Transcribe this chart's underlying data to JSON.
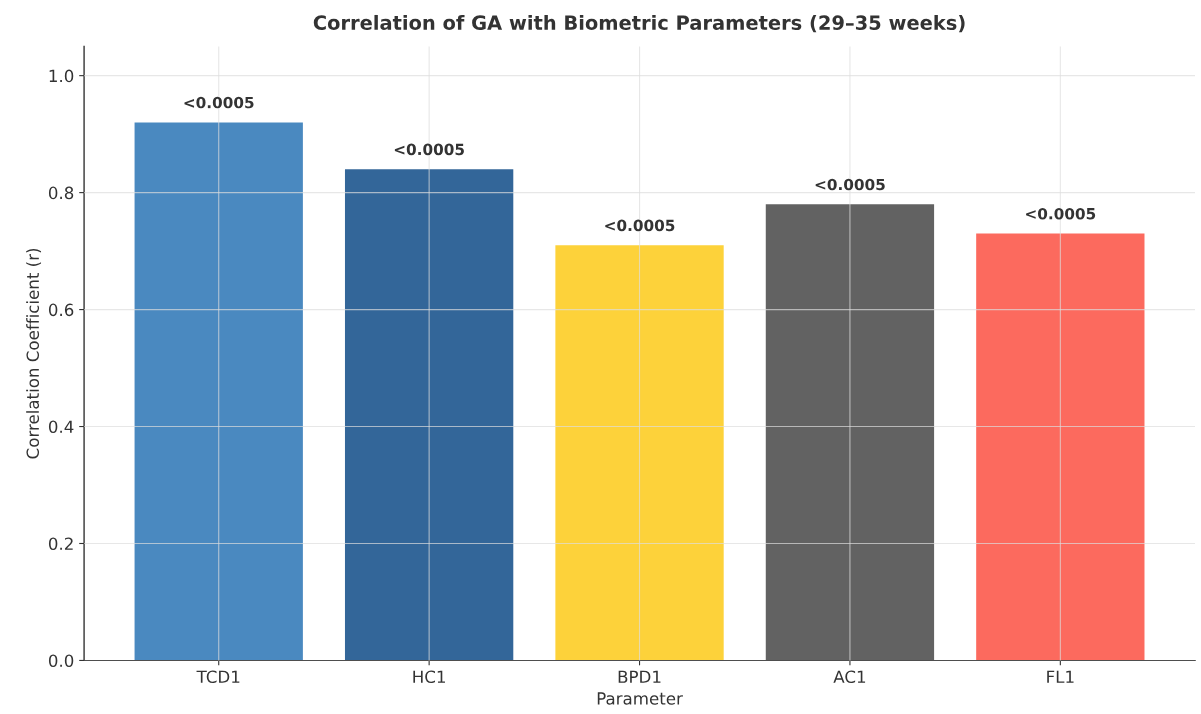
{
  "chart_data": {
    "type": "bar",
    "title": "Correlation of GA with Biometric Parameters (29–35 weeks)",
    "xlabel": "Parameter",
    "ylabel": "Correlation Coefficient (r)",
    "categories": [
      "TCD1",
      "HC1",
      "BPD1",
      "AC1",
      "FL1"
    ],
    "values": [
      0.92,
      0.84,
      0.71,
      0.78,
      0.73
    ],
    "colors": [
      "#4a89c0",
      "#336699",
      "#fdd23a",
      "#626262",
      "#fc6a5e"
    ],
    "value_labels": [
      "<0.0005",
      "<0.0005",
      "<0.0005",
      "<0.0005",
      "<0.0005"
    ],
    "ylim": [
      0,
      1.05
    ],
    "yticks": [
      {
        "value": 0,
        "label": "0.0"
      },
      0.2,
      0.4,
      0.6,
      0.8,
      {
        "value": 1,
        "label": "1.0"
      }
    ],
    "grid": true
  }
}
